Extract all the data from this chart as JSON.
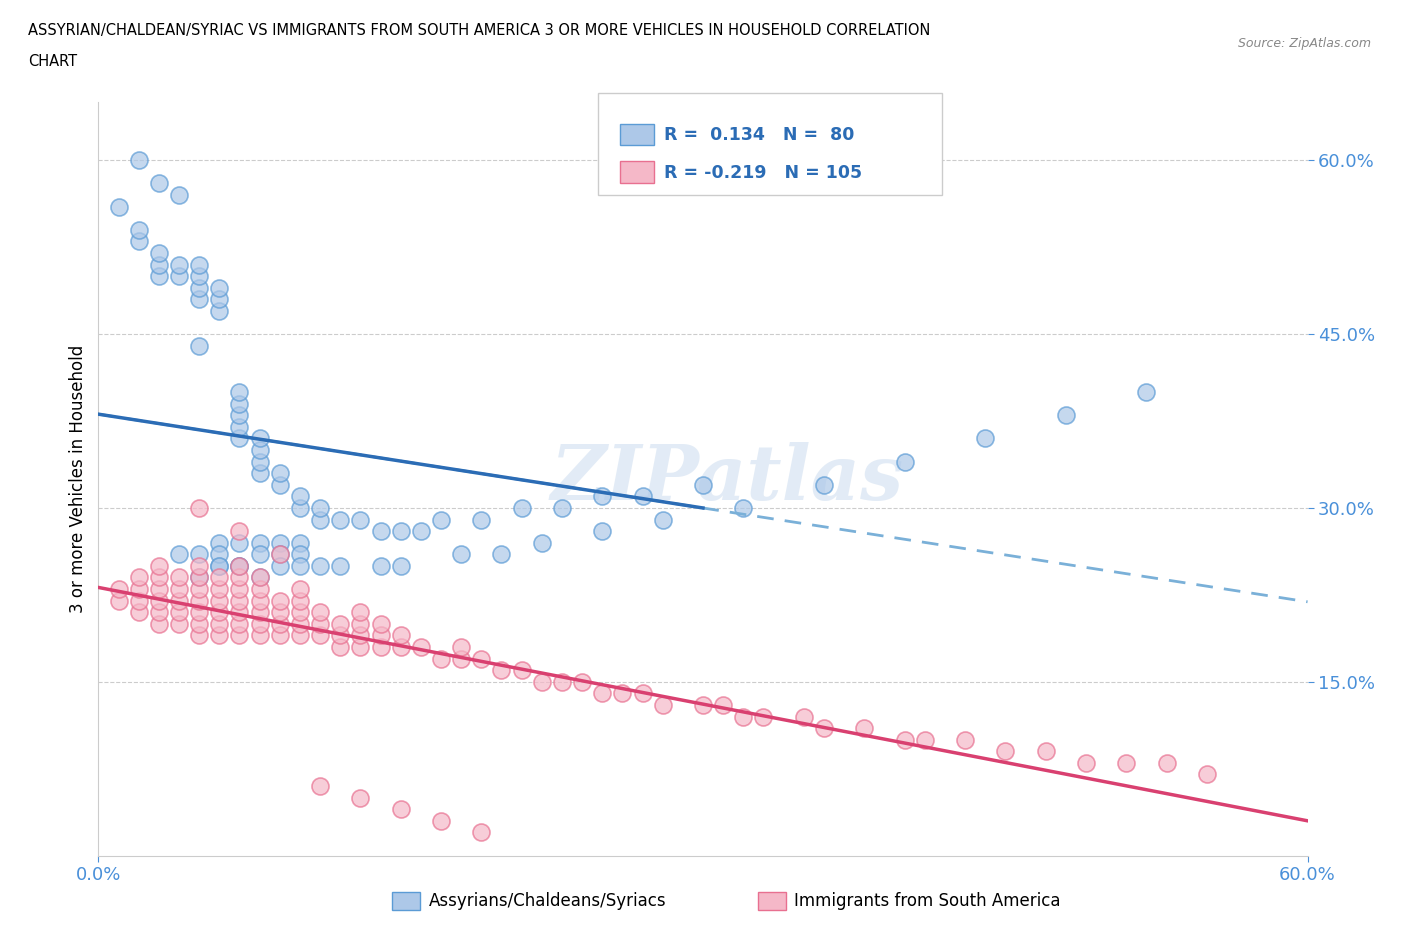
{
  "title_line1": "ASSYRIAN/CHALDEAN/SYRIAC VS IMMIGRANTS FROM SOUTH AMERICA 3 OR MORE VEHICLES IN HOUSEHOLD CORRELATION",
  "title_line2": "CHART",
  "source_text": "Source: ZipAtlas.com",
  "ylabel": "3 or more Vehicles in Household",
  "xlim": [
    0.0,
    0.6
  ],
  "ylim": [
    0.0,
    0.65
  ],
  "ytick_labels": [
    "15.0%",
    "30.0%",
    "45.0%",
    "60.0%"
  ],
  "ytick_positions": [
    0.15,
    0.3,
    0.45,
    0.6
  ],
  "blue_color": "#adc8e8",
  "pink_color": "#f5b8c8",
  "blue_edge_color": "#5b9bd5",
  "pink_edge_color": "#e87090",
  "blue_trend_color": "#2b6cb5",
  "pink_trend_color": "#d94070",
  "blue_dash_color": "#7ab0d8",
  "watermark": "ZIPatlas",
  "blue_scatter_x": [
    0.01,
    0.02,
    0.02,
    0.03,
    0.03,
    0.03,
    0.04,
    0.04,
    0.05,
    0.05,
    0.05,
    0.05,
    0.06,
    0.06,
    0.06,
    0.07,
    0.07,
    0.07,
    0.07,
    0.07,
    0.08,
    0.08,
    0.08,
    0.08,
    0.09,
    0.09,
    0.1,
    0.1,
    0.11,
    0.11,
    0.12,
    0.13,
    0.14,
    0.15,
    0.16,
    0.17,
    0.19,
    0.21,
    0.23,
    0.25,
    0.27,
    0.3,
    0.06,
    0.07,
    0.08,
    0.09,
    0.1,
    0.04,
    0.05,
    0.06,
    0.06,
    0.07,
    0.08,
    0.09,
    0.1,
    0.05,
    0.06,
    0.07,
    0.08,
    0.09,
    0.1,
    0.11,
    0.12,
    0.14,
    0.15,
    0.18,
    0.2,
    0.22,
    0.25,
    0.28,
    0.32,
    0.36,
    0.4,
    0.44,
    0.48,
    0.52,
    0.02,
    0.03,
    0.04,
    0.05
  ],
  "blue_scatter_y": [
    0.56,
    0.53,
    0.54,
    0.5,
    0.51,
    0.52,
    0.5,
    0.51,
    0.48,
    0.49,
    0.5,
    0.51,
    0.47,
    0.48,
    0.49,
    0.36,
    0.37,
    0.38,
    0.39,
    0.4,
    0.33,
    0.34,
    0.35,
    0.36,
    0.32,
    0.33,
    0.3,
    0.31,
    0.29,
    0.3,
    0.29,
    0.29,
    0.28,
    0.28,
    0.28,
    0.29,
    0.29,
    0.3,
    0.3,
    0.31,
    0.31,
    0.32,
    0.27,
    0.27,
    0.27,
    0.27,
    0.27,
    0.26,
    0.26,
    0.25,
    0.26,
    0.25,
    0.26,
    0.26,
    0.26,
    0.24,
    0.25,
    0.25,
    0.24,
    0.25,
    0.25,
    0.25,
    0.25,
    0.25,
    0.25,
    0.26,
    0.26,
    0.27,
    0.28,
    0.29,
    0.3,
    0.32,
    0.34,
    0.36,
    0.38,
    0.4,
    0.6,
    0.58,
    0.57,
    0.44
  ],
  "pink_scatter_x": [
    0.01,
    0.01,
    0.02,
    0.02,
    0.02,
    0.02,
    0.03,
    0.03,
    0.03,
    0.03,
    0.03,
    0.03,
    0.04,
    0.04,
    0.04,
    0.04,
    0.04,
    0.05,
    0.05,
    0.05,
    0.05,
    0.05,
    0.05,
    0.05,
    0.06,
    0.06,
    0.06,
    0.06,
    0.06,
    0.06,
    0.07,
    0.07,
    0.07,
    0.07,
    0.07,
    0.07,
    0.07,
    0.08,
    0.08,
    0.08,
    0.08,
    0.08,
    0.08,
    0.09,
    0.09,
    0.09,
    0.09,
    0.1,
    0.1,
    0.1,
    0.1,
    0.1,
    0.11,
    0.11,
    0.11,
    0.12,
    0.12,
    0.12,
    0.13,
    0.13,
    0.13,
    0.13,
    0.14,
    0.14,
    0.14,
    0.15,
    0.15,
    0.16,
    0.17,
    0.18,
    0.18,
    0.19,
    0.2,
    0.21,
    0.22,
    0.23,
    0.24,
    0.25,
    0.26,
    0.27,
    0.28,
    0.3,
    0.31,
    0.32,
    0.33,
    0.35,
    0.36,
    0.38,
    0.4,
    0.41,
    0.43,
    0.45,
    0.47,
    0.49,
    0.51,
    0.53,
    0.55,
    0.05,
    0.07,
    0.09,
    0.11,
    0.13,
    0.15,
    0.17,
    0.19
  ],
  "pink_scatter_y": [
    0.22,
    0.23,
    0.21,
    0.22,
    0.23,
    0.24,
    0.2,
    0.21,
    0.22,
    0.23,
    0.24,
    0.25,
    0.2,
    0.21,
    0.22,
    0.23,
    0.24,
    0.19,
    0.2,
    0.21,
    0.22,
    0.23,
    0.24,
    0.25,
    0.19,
    0.2,
    0.21,
    0.22,
    0.23,
    0.24,
    0.19,
    0.2,
    0.21,
    0.22,
    0.23,
    0.24,
    0.25,
    0.19,
    0.2,
    0.21,
    0.22,
    0.23,
    0.24,
    0.19,
    0.2,
    0.21,
    0.22,
    0.19,
    0.2,
    0.21,
    0.22,
    0.23,
    0.19,
    0.2,
    0.21,
    0.18,
    0.19,
    0.2,
    0.18,
    0.19,
    0.2,
    0.21,
    0.18,
    0.19,
    0.2,
    0.18,
    0.19,
    0.18,
    0.17,
    0.17,
    0.18,
    0.17,
    0.16,
    0.16,
    0.15,
    0.15,
    0.15,
    0.14,
    0.14,
    0.14,
    0.13,
    0.13,
    0.13,
    0.12,
    0.12,
    0.12,
    0.11,
    0.11,
    0.1,
    0.1,
    0.1,
    0.09,
    0.09,
    0.08,
    0.08,
    0.08,
    0.07,
    0.3,
    0.28,
    0.26,
    0.06,
    0.05,
    0.04,
    0.03,
    0.02
  ],
  "blue_label": "Assyrians/Chaldeans/Syriacs",
  "pink_label": "Immigrants from South America"
}
